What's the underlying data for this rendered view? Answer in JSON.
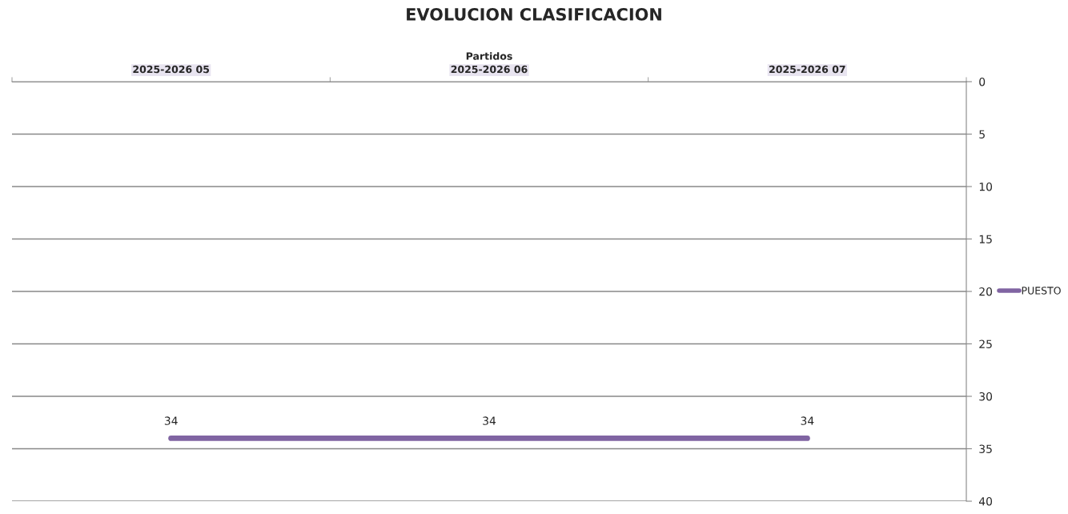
{
  "chart_data": {
    "type": "line",
    "title": "EVOLUCION CLASIFICACION",
    "xlabel": "Partidos",
    "categories": [
      "2025-2026 05",
      "2025-2026 06",
      "2025-2026 07"
    ],
    "series": [
      {
        "name": "PUESTO",
        "color": "#8064a2",
        "values": [
          34,
          34,
          34
        ]
      }
    ],
    "ylim": [
      40,
      0
    ],
    "yticks": [
      0,
      5,
      10,
      15,
      20,
      25,
      30,
      35,
      40
    ],
    "grid": "y",
    "legend": "right",
    "data_labels": true,
    "marker": "none",
    "line_style": "solid"
  }
}
